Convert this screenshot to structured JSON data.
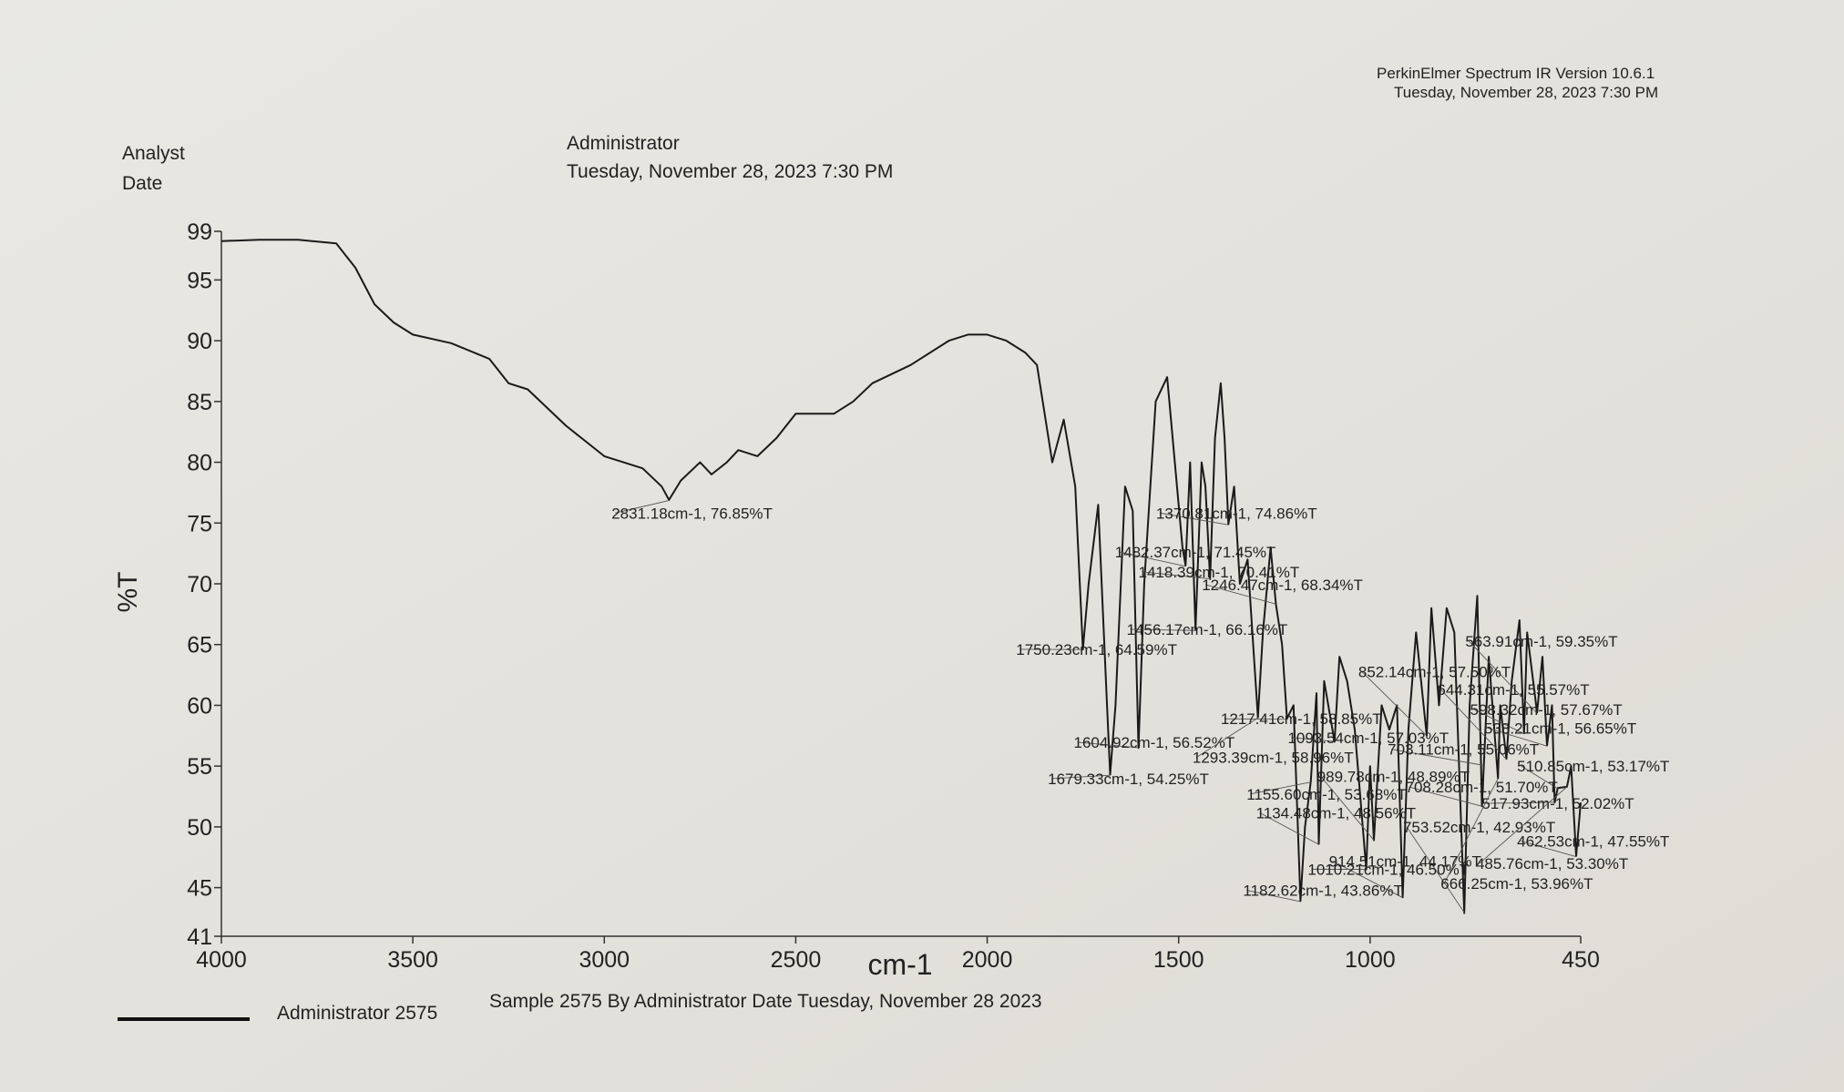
{
  "header": {
    "software": "PerkinElmer Spectrum IR Version 10.6.1",
    "print_date": "Tuesday, November 28, 2023 7:30 PM",
    "analyst_label": "Analyst",
    "date_label": "Date",
    "analyst": "Administrator",
    "date": "Tuesday, November 28, 2023 7:30 PM"
  },
  "chart_data": {
    "type": "line",
    "x_label": "cm-1",
    "y_label": "%T",
    "xlim": [
      4000,
      450
    ],
    "ylim": [
      41,
      99
    ],
    "xticks": [
      4000,
      3500,
      3000,
      2500,
      2000,
      1500,
      1000,
      450
    ],
    "yticks": [
      41,
      45,
      50,
      55,
      60,
      65,
      70,
      75,
      80,
      85,
      90,
      95,
      99
    ],
    "legend_note": "Sample 2575 By Administrator Date Tuesday, November 28 2023",
    "x": [
      4000,
      3900,
      3800,
      3700,
      3650,
      3600,
      3550,
      3500,
      3400,
      3300,
      3250,
      3200,
      3100,
      3000,
      2950,
      2900,
      2850,
      2831,
      2800,
      2750,
      2720,
      2680,
      2650,
      2600,
      2550,
      2500,
      2450,
      2400,
      2350,
      2300,
      2200,
      2100,
      2050,
      2000,
      1950,
      1900,
      1870,
      1830,
      1800,
      1770,
      1750,
      1735,
      1710,
      1690,
      1679,
      1665,
      1640,
      1620,
      1605,
      1590,
      1560,
      1530,
      1510,
      1490,
      1482,
      1470,
      1456,
      1440,
      1430,
      1418,
      1405,
      1390,
      1380,
      1370,
      1355,
      1340,
      1320,
      1293,
      1280,
      1260,
      1246,
      1230,
      1217,
      1200,
      1182,
      1170,
      1155,
      1140,
      1134,
      1120,
      1093,
      1080,
      1060,
      1040,
      1010,
      1000,
      990,
      970,
      950,
      930,
      915,
      900,
      880,
      852,
      840,
      820,
      800,
      780,
      754,
      740,
      720,
      708,
      703,
      690,
      666,
      660,
      644,
      630,
      610,
      598,
      590,
      564,
      550,
      538,
      525,
      518,
      510,
      486,
      475,
      462,
      450
    ],
    "series": [
      {
        "name": "Administrator 2575",
        "color": "#1a1a1a",
        "values": [
          98.2,
          98.3,
          98.3,
          98,
          96,
          93,
          91.5,
          90.5,
          89.8,
          88.5,
          86.5,
          86,
          83,
          80.5,
          80,
          79.5,
          78,
          76.9,
          78.5,
          80,
          79,
          80,
          81,
          80.5,
          82,
          84,
          84,
          84,
          85,
          86.5,
          88,
          90,
          90.5,
          90.5,
          90,
          89,
          88,
          80,
          83.5,
          78,
          64.6,
          70,
          76.5,
          62,
          54.3,
          60,
          78,
          76,
          56.5,
          70,
          85,
          87,
          80,
          73,
          71.5,
          80,
          66.2,
          80,
          78,
          70.4,
          82,
          86.5,
          82,
          74.9,
          78,
          70,
          72,
          59,
          66,
          73,
          68.3,
          65,
          58.9,
          60,
          43.9,
          50,
          53.7,
          61,
          48.6,
          62,
          57,
          64,
          62,
          58,
          46.5,
          55,
          48.9,
          60,
          58,
          60,
          44.2,
          58,
          66,
          57.5,
          68,
          60,
          68,
          66,
          42.9,
          60,
          69,
          51.7,
          55.1,
          64,
          54,
          60,
          55.6,
          62,
          67,
          57.7,
          66,
          59.4,
          64,
          56.7,
          60,
          52,
          53.2,
          53.3,
          55,
          47.6,
          52
        ]
      }
    ],
    "peaks": {
      "x": [
        2831.18,
        1370.81,
        1482.37,
        1418.39,
        1246.47,
        1456.17,
        1750.23,
        563.91,
        852.14,
        644.31,
        598.32,
        1217.41,
        538.21,
        1604.92,
        1093.54,
        1293.39,
        703.11,
        510.85,
        989.78,
        1679.33,
        1155.6,
        708.28,
        1134.48,
        517.93,
        753.52,
        462.53,
        914.51,
        1010.21,
        485.76,
        1182.62,
        666.25
      ],
      "values": [
        76.85,
        74.86,
        71.45,
        70.41,
        68.34,
        66.16,
        64.59,
        59.35,
        57.5,
        55.57,
        57.67,
        58.85,
        56.65,
        56.52,
        57.03,
        58.96,
        55.06,
        53.17,
        48.89,
        54.25,
        53.68,
        51.7,
        48.56,
        52.02,
        42.93,
        47.55,
        44.17,
        46.5,
        53.3,
        43.86,
        53.96
      ],
      "value_labels": [
        "2831.18cm-1, 76.85%T",
        "1370.81cm-1, 74.86%T",
        "1482.37cm-1, 71.45%T",
        "1418.39cm-1, 70.41%T",
        "1246.47cm-1, 68.34%T",
        "1456.17cm-1, 66.16%T",
        "1750.23cm-1, 64.59%T",
        "563.91cm-1, 59.35%T",
        "852.14cm-1, 57.50%T",
        "644.31cm-1, 55.57%T",
        "598.32cm-1, 57.67%T",
        "1217.41cm-1, 58.85%T",
        "538.21cm-1, 56.65%T",
        "1604.92cm-1, 56.52%T",
        "1093.54cm-1, 57.03%T",
        "1293.39cm-1, 58.96%T",
        "703.11cm-1, 55.06%T",
        "510.85cm-1, 53.17%T",
        "989.78cm-1, 48.89%T",
        "1679.33cm-1, 54.25%T",
        "1155.60cm-1, 53.68%T",
        "708.28cm-1, 51.70%T",
        "1134.48cm-1, 48.56%T",
        "517.93cm-1, 52.02%T",
        "753.52cm-1, 42.93%T",
        "462.53cm-1, 47.55%T",
        "914.51cm-1, 44.17%T",
        "1010.21cm-1, 46.50%T",
        "485.76cm-1, 53.30%T",
        "1182.62cm-1, 43.86%T",
        "666.25cm-1, 53.96%T"
      ]
    }
  }
}
